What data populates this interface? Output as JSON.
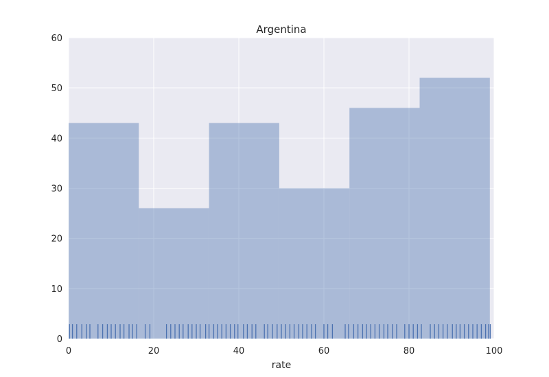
{
  "chart_data": {
    "type": "bar",
    "subtype": "histogram-with-rug",
    "title": "Argentina",
    "xlabel": "rate",
    "ylabel": "",
    "xlim": [
      0,
      100
    ],
    "ylim": [
      0,
      60
    ],
    "xticks": [
      0,
      20,
      40,
      60,
      80,
      100
    ],
    "yticks": [
      0,
      10,
      20,
      30,
      40,
      50,
      60
    ],
    "bins": [
      {
        "start": 0,
        "end": 16.5,
        "count": 43
      },
      {
        "start": 16.5,
        "end": 33,
        "count": 26
      },
      {
        "start": 33,
        "end": 49.5,
        "count": 43
      },
      {
        "start": 49.5,
        "end": 66,
        "count": 30
      },
      {
        "start": 66,
        "end": 82.5,
        "count": 46
      },
      {
        "start": 82.5,
        "end": 99,
        "count": 52
      }
    ],
    "rug": [
      0.2,
      0.9,
      1.9,
      3.1,
      4.2,
      5.0,
      6.9,
      8.0,
      9.1,
      10.0,
      11.0,
      12.1,
      13.0,
      14.2,
      15.0,
      16.0,
      18.0,
      19.1,
      23.0,
      24.0,
      25.0,
      26.0,
      26.9,
      28.1,
      29.0,
      30.0,
      30.9,
      32.2,
      33.0,
      34.1,
      35.0,
      36.0,
      37.0,
      38.0,
      39.0,
      39.8,
      41.1,
      42.0,
      43.1,
      44.0,
      46.0,
      46.8,
      47.9,
      49.0,
      50.0,
      51.0,
      52.0,
      53.0,
      54.1,
      55.0,
      56.0,
      57.1,
      58.0,
      60.0,
      60.9,
      62.0,
      65.0,
      65.8,
      67.0,
      68.0,
      69.1,
      70.0,
      71.0,
      72.0,
      73.0,
      74.1,
      75.0,
      76.1,
      77.1,
      79.0,
      80.0,
      81.0,
      82.0,
      82.9,
      85.0,
      86.0,
      87.0,
      88.0,
      89.0,
      90.2,
      91.1,
      92.0,
      93.0,
      94.0,
      95.0,
      96.0,
      97.0,
      98.0,
      98.7,
      99.1
    ],
    "grid": true,
    "colors": {
      "plot_background": "#eaeaf2",
      "grid": "#ffffff",
      "bar": "#4c72b0",
      "rug": "#4c72b0"
    }
  }
}
